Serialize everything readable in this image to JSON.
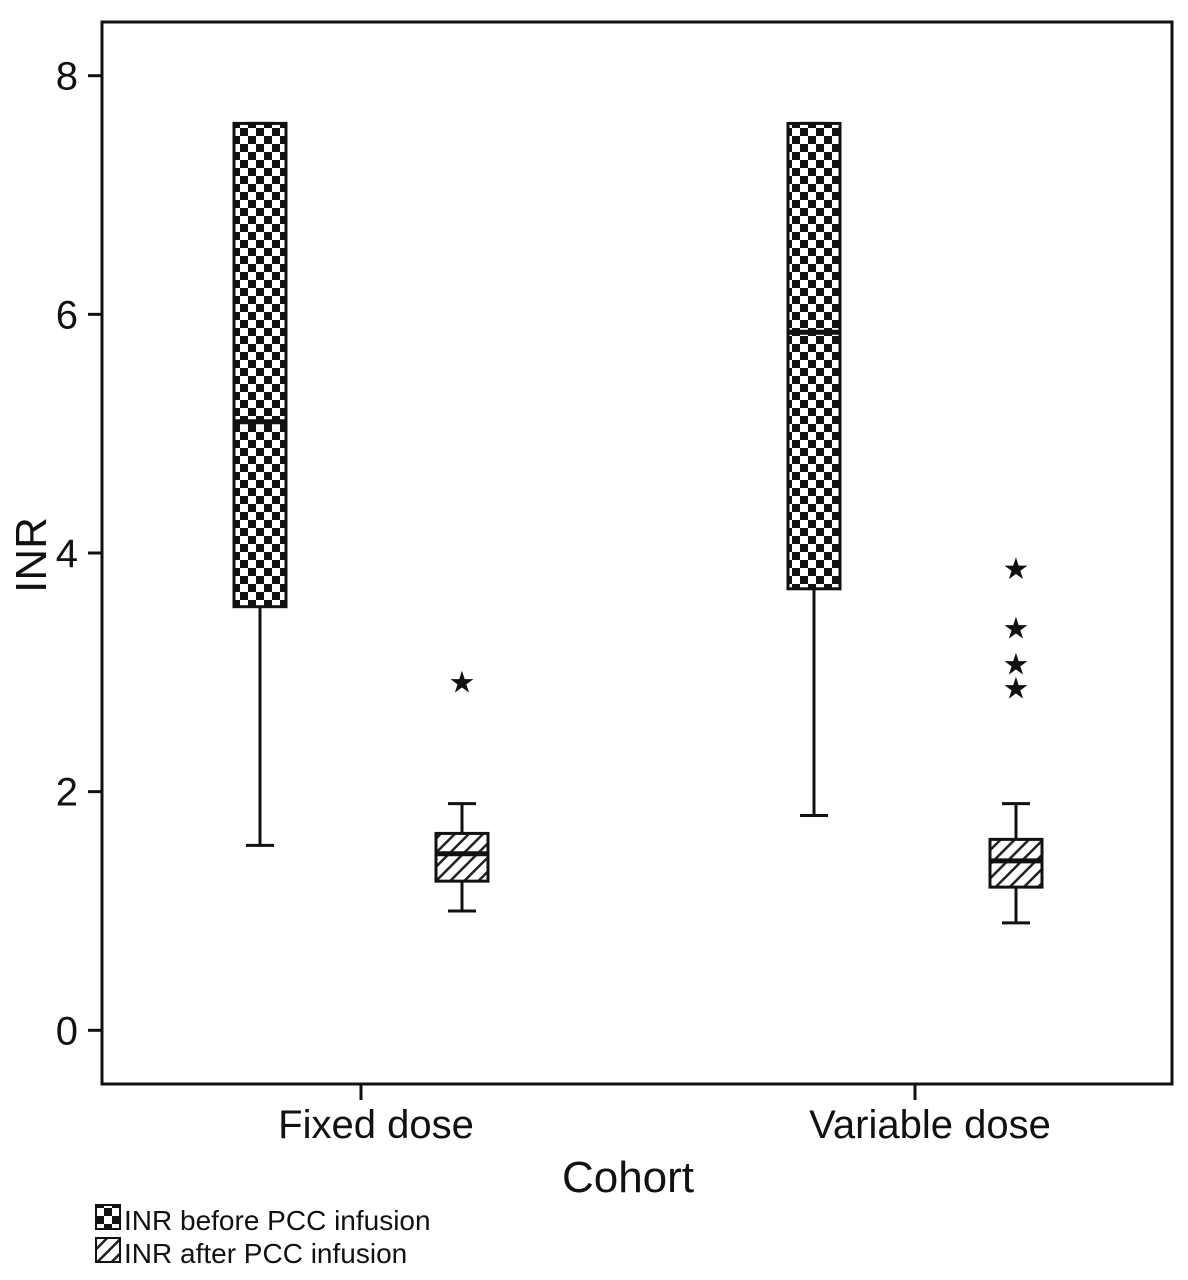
{
  "chart_data": {
    "type": "boxplot",
    "xlabel": "Cohort",
    "ylabel": "INR",
    "ylim": [
      -0.45,
      8.45
    ],
    "yticks": [
      0,
      2,
      4,
      6,
      8
    ],
    "grid": false,
    "legend_position": "bottom-left",
    "categories": [
      "Fixed dose",
      "Variable dose"
    ],
    "series": [
      {
        "name": "INR before PCC infusion",
        "pattern": "checker",
        "boxes": [
          {
            "category": "Fixed dose",
            "whisker_low": 1.55,
            "q1": 3.55,
            "median": 5.1,
            "q3": 7.6,
            "whisker_high": 7.6,
            "outliers": []
          },
          {
            "category": "Variable dose",
            "whisker_low": 1.8,
            "q1": 3.7,
            "median": 5.85,
            "q3": 7.6,
            "whisker_high": 7.6,
            "outliers": []
          }
        ]
      },
      {
        "name": "INR after PCC infusion",
        "pattern": "hatch",
        "boxes": [
          {
            "category": "Fixed dose",
            "whisker_low": 1.0,
            "q1": 1.25,
            "median": 1.48,
            "q3": 1.65,
            "whisker_high": 1.9,
            "outliers": [
              2.95
            ]
          },
          {
            "category": "Variable dose",
            "whisker_low": 0.9,
            "q1": 1.2,
            "median": 1.42,
            "q3": 1.6,
            "whisker_high": 1.9,
            "outliers": [
              2.9,
              3.1,
              3.4,
              3.9
            ]
          }
        ]
      }
    ]
  }
}
